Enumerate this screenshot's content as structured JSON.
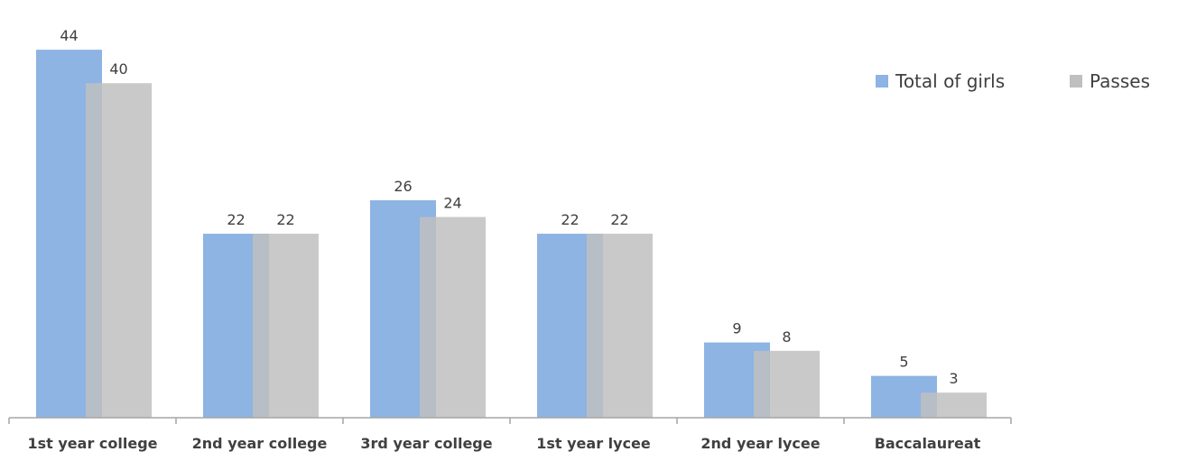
{
  "chart_data": {
    "type": "bar",
    "categories": [
      "1st year college",
      "2nd year college",
      "3rd year college",
      "1st year lycee",
      "2nd year lycee",
      "Baccalaureat"
    ],
    "series": [
      {
        "name": "Total of girls",
        "values": [
          44,
          22,
          26,
          22,
          9,
          5
        ],
        "color": "#8db4e2"
      },
      {
        "name": "Passes",
        "values": [
          40,
          22,
          24,
          22,
          8,
          3
        ],
        "color": "#bfbfbf",
        "opacity": 0.85
      }
    ],
    "ylim": [
      0,
      48
    ],
    "grid": false,
    "legend": "top-right",
    "axis_color": "#a6a6a6"
  }
}
